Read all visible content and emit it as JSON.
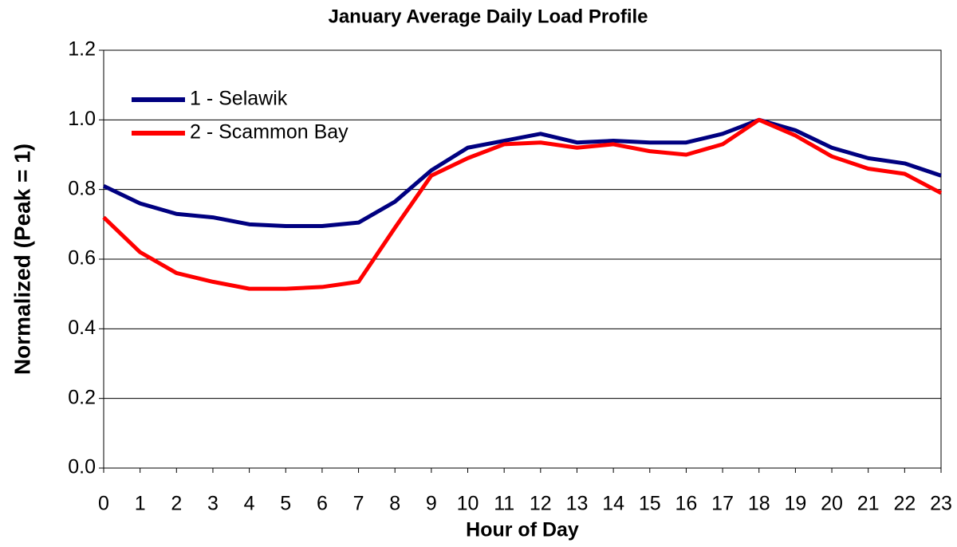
{
  "chart_data": {
    "type": "line",
    "title": "January Average Daily Load Profile",
    "xlabel": "Hour of Day",
    "ylabel": "Normalized  (Peak = 1)",
    "x": [
      0,
      1,
      2,
      3,
      4,
      5,
      6,
      7,
      8,
      9,
      10,
      11,
      12,
      13,
      14,
      15,
      16,
      17,
      18,
      19,
      20,
      21,
      22,
      23
    ],
    "series": [
      {
        "name": "1 - Selawik",
        "color": "#000080",
        "values": [
          0.81,
          0.76,
          0.73,
          0.72,
          0.7,
          0.695,
          0.695,
          0.705,
          0.765,
          0.855,
          0.92,
          0.94,
          0.96,
          0.935,
          0.94,
          0.935,
          0.935,
          0.96,
          1.0,
          0.97,
          0.92,
          0.89,
          0.875,
          0.84
        ]
      },
      {
        "name": "2 - Scammon Bay",
        "color": "#ff0000",
        "values": [
          0.72,
          0.62,
          0.56,
          0.535,
          0.515,
          0.515,
          0.52,
          0.535,
          0.69,
          0.84,
          0.89,
          0.93,
          0.935,
          0.92,
          0.93,
          0.91,
          0.9,
          0.93,
          1.0,
          0.955,
          0.895,
          0.86,
          0.845,
          0.79
        ]
      }
    ],
    "xlim": [
      0,
      23
    ],
    "xticks": [
      0,
      1,
      2,
      3,
      4,
      5,
      6,
      7,
      8,
      9,
      10,
      11,
      12,
      13,
      14,
      15,
      16,
      17,
      18,
      19,
      20,
      21,
      22,
      23
    ],
    "ylim": [
      0,
      1.2
    ],
    "yticks": [
      {
        "value": 0,
        "label": "0.0"
      },
      {
        "value": 0.2,
        "label": "0.2"
      },
      {
        "value": 0.4,
        "label": "0.4"
      },
      {
        "value": 0.6,
        "label": "0.6"
      },
      {
        "value": 0.8,
        "label": "0.8"
      },
      {
        "value": 1.0,
        "label": "1.0"
      },
      {
        "value": 1.2,
        "label": "1.2"
      }
    ],
    "grid": true,
    "legend": "upper left"
  }
}
